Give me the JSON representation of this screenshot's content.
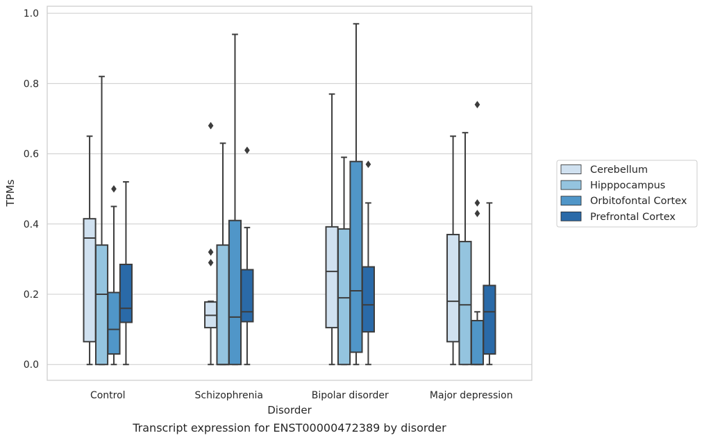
{
  "caption": "Transcript expression for ENST00000472389 by disorder",
  "chart_data": {
    "type": "box",
    "title": "",
    "xlabel": "Disorder",
    "ylabel": "TPMs",
    "ylim": [
      -0.045,
      1.02
    ],
    "yticks": [
      "0.0",
      "0.2",
      "0.4",
      "0.6",
      "0.8",
      "1.0"
    ],
    "grid": "horizontal",
    "legend_position": "right",
    "categories": [
      "Control",
      "Schizophrenia",
      "Bipolar disorder",
      "Major depression"
    ],
    "series": [
      {
        "name": "Cerebellum",
        "color": "#d0e1f0",
        "boxes": [
          {
            "whislo": 0.0,
            "q1": 0.065,
            "med": 0.36,
            "q3": 0.415,
            "whishi": 0.65,
            "fliers": []
          },
          {
            "whislo": 0.0,
            "q1": 0.105,
            "med": 0.14,
            "q3": 0.178,
            "whishi": 0.18,
            "fliers": [
              0.29,
              0.32,
              0.68
            ]
          },
          {
            "whislo": 0.0,
            "q1": 0.105,
            "med": 0.265,
            "q3": 0.392,
            "whishi": 0.77,
            "fliers": []
          },
          {
            "whislo": 0.0,
            "q1": 0.065,
            "med": 0.18,
            "q3": 0.37,
            "whishi": 0.65,
            "fliers": []
          }
        ]
      },
      {
        "name": "Hipppocampus",
        "color": "#94c4df",
        "boxes": [
          {
            "whislo": 0.0,
            "q1": 0.0,
            "med": 0.2,
            "q3": 0.34,
            "whishi": 0.82,
            "fliers": []
          },
          {
            "whislo": 0.0,
            "q1": 0.0,
            "med": 0.0,
            "q3": 0.34,
            "whishi": 0.63,
            "fliers": []
          },
          {
            "whislo": 0.0,
            "q1": 0.0,
            "med": 0.19,
            "q3": 0.386,
            "whishi": 0.59,
            "fliers": []
          },
          {
            "whislo": 0.0,
            "q1": 0.0,
            "med": 0.17,
            "q3": 0.35,
            "whishi": 0.66,
            "fliers": []
          }
        ]
      },
      {
        "name": "Orbitofontal Cortex",
        "color": "#5096c8",
        "boxes": [
          {
            "whislo": 0.0,
            "q1": 0.03,
            "med": 0.1,
            "q3": 0.205,
            "whishi": 0.45,
            "fliers": [
              0.5
            ]
          },
          {
            "whislo": 0.0,
            "q1": 0.0,
            "med": 0.135,
            "q3": 0.41,
            "whishi": 0.94,
            "fliers": []
          },
          {
            "whislo": 0.0,
            "q1": 0.035,
            "med": 0.21,
            "q3": 0.578,
            "whishi": 0.97,
            "fliers": []
          },
          {
            "whislo": 0.0,
            "q1": 0.0,
            "med": 0.0,
            "q3": 0.125,
            "whishi": 0.15,
            "fliers": [
              0.43,
              0.46,
              0.74
            ]
          }
        ]
      },
      {
        "name": "Prefrontal Cortex",
        "color": "#2a6aa8",
        "boxes": [
          {
            "whislo": 0.0,
            "q1": 0.12,
            "med": 0.16,
            "q3": 0.285,
            "whishi": 0.52,
            "fliers": []
          },
          {
            "whislo": 0.0,
            "q1": 0.122,
            "med": 0.15,
            "q3": 0.27,
            "whishi": 0.39,
            "fliers": [
              0.61
            ]
          },
          {
            "whislo": 0.0,
            "q1": 0.093,
            "med": 0.17,
            "q3": 0.278,
            "whishi": 0.46,
            "fliers": [
              0.57
            ]
          },
          {
            "whislo": 0.0,
            "q1": 0.03,
            "med": 0.15,
            "q3": 0.225,
            "whishi": 0.46,
            "fliers": []
          }
        ]
      }
    ]
  }
}
